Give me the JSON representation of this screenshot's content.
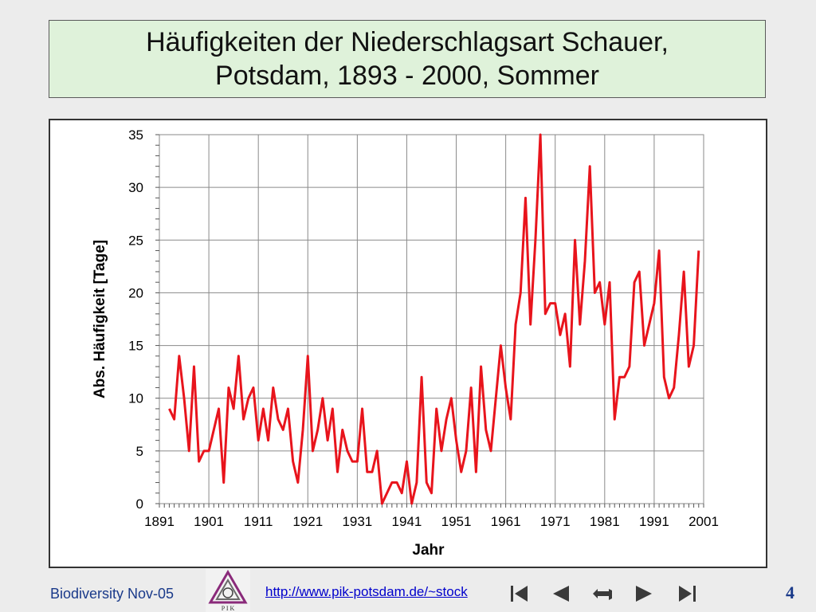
{
  "title": {
    "line1": "Häufigkeiten der Niederschlagsart Schauer,",
    "line2": "Potsdam, 1893 - 2000, Sommer"
  },
  "footer": {
    "left_text": "Biodiversity Nov-05",
    "link_text": "http://www.pik-potsdam.de/~stock",
    "page_number": "4",
    "logo_letters": "P I K",
    "nav_icons": [
      "first-page-icon",
      "previous-page-icon",
      "return-icon",
      "next-page-icon",
      "last-page-icon"
    ]
  },
  "chart_data": {
    "type": "line",
    "title": "",
    "xlabel": "Jahr",
    "ylabel": "Abs. Häufigkeit [Tage]",
    "xlim": [
      1891,
      2001
    ],
    "ylim": [
      0,
      35
    ],
    "xticks": [
      "1891",
      "1901",
      "1911",
      "1921",
      "1931",
      "1941",
      "1951",
      "1961",
      "1971",
      "1981",
      "1991",
      "2001"
    ],
    "yticks": [
      "0",
      "5",
      "10",
      "15",
      "20",
      "25",
      "30",
      "35"
    ],
    "grid": true,
    "line_color": "#e8141c",
    "x": [
      1893,
      1894,
      1895,
      1896,
      1897,
      1898,
      1899,
      1900,
      1901,
      1902,
      1903,
      1904,
      1905,
      1906,
      1907,
      1908,
      1909,
      1910,
      1911,
      1912,
      1913,
      1914,
      1915,
      1916,
      1917,
      1918,
      1919,
      1920,
      1921,
      1922,
      1923,
      1924,
      1925,
      1926,
      1927,
      1928,
      1929,
      1930,
      1931,
      1932,
      1933,
      1934,
      1935,
      1936,
      1937,
      1938,
      1939,
      1940,
      1941,
      1942,
      1943,
      1944,
      1945,
      1946,
      1947,
      1948,
      1949,
      1950,
      1951,
      1952,
      1953,
      1954,
      1955,
      1956,
      1957,
      1958,
      1959,
      1960,
      1961,
      1962,
      1963,
      1964,
      1965,
      1966,
      1967,
      1968,
      1969,
      1970,
      1971,
      1972,
      1973,
      1974,
      1975,
      1976,
      1977,
      1978,
      1979,
      1980,
      1981,
      1982,
      1983,
      1984,
      1985,
      1986,
      1987,
      1988,
      1989,
      1990,
      1991,
      1992,
      1993,
      1994,
      1995,
      1996,
      1997,
      1998,
      1999,
      2000
    ],
    "series": [
      {
        "values": [
          9,
          8,
          14,
          10,
          5,
          13,
          4,
          5,
          5,
          7,
          9,
          2,
          11,
          9,
          14,
          8,
          10,
          11,
          6,
          9,
          6,
          11,
          8,
          7,
          9,
          4,
          2,
          7,
          14,
          5,
          7,
          10,
          6,
          9,
          3,
          7,
          5,
          4,
          4,
          9,
          3,
          3,
          5,
          0,
          1,
          2,
          2,
          1,
          4,
          0,
          2,
          12,
          2,
          1,
          9,
          5,
          8,
          10,
          6,
          3,
          5,
          11,
          3,
          13,
          7,
          5,
          10,
          15,
          11,
          8,
          17,
          20,
          29,
          17,
          25,
          35,
          18,
          19,
          19,
          16,
          18,
          13,
          25,
          17,
          23,
          32,
          20,
          21,
          17,
          21,
          8,
          12,
          12,
          13,
          21,
          22,
          15,
          17,
          19,
          24,
          12,
          10,
          11,
          16,
          22,
          13,
          15,
          24
        ]
      }
    ]
  }
}
